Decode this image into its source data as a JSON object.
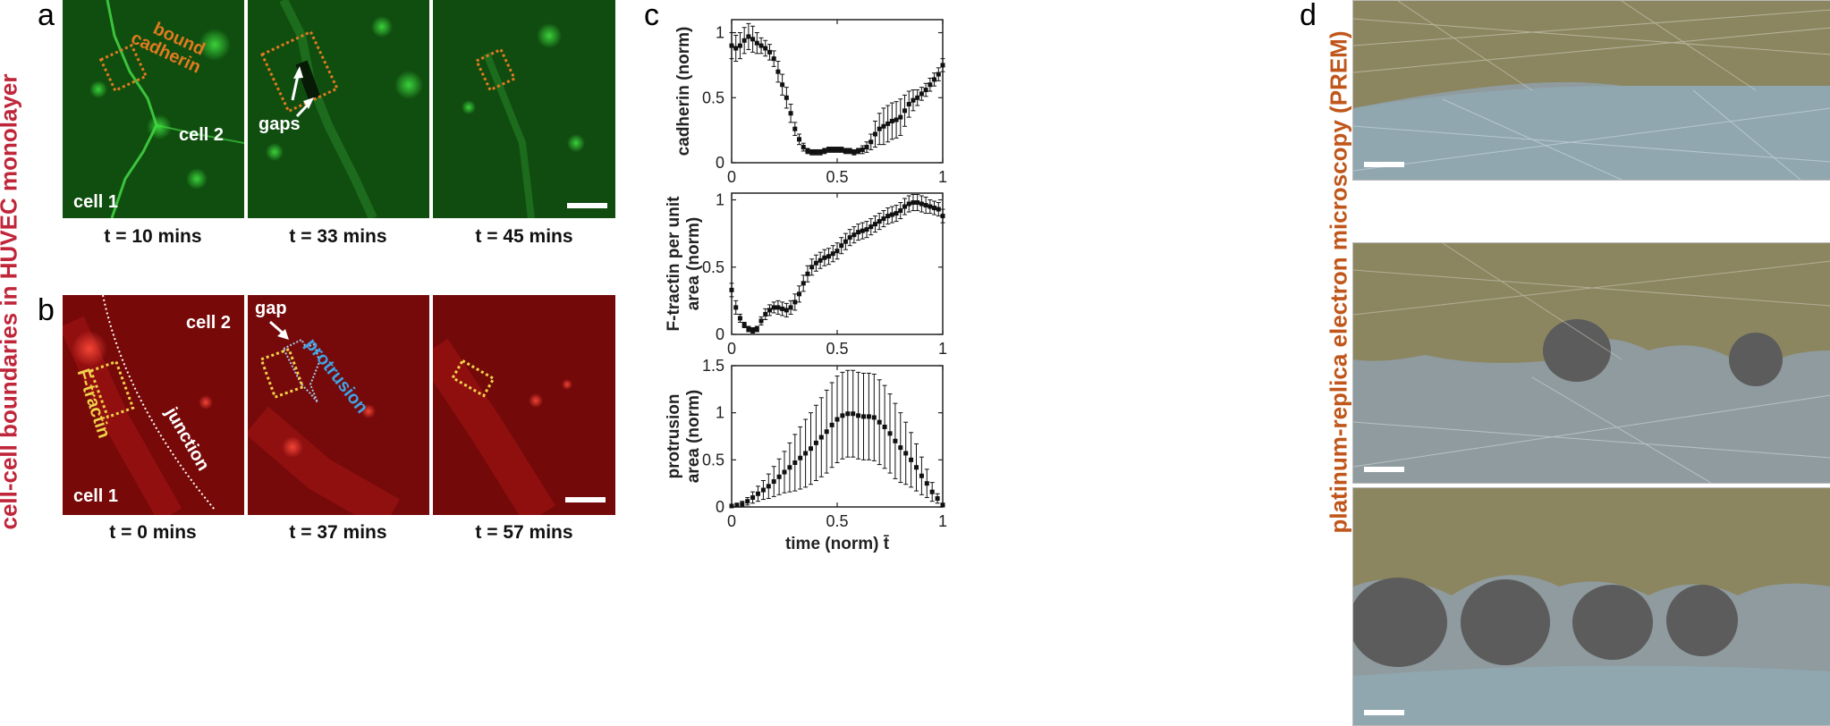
{
  "figure": {
    "side_label_left": "cell-cell boundaries in HUVEC monolayer",
    "side_label_right": "platinum-replica electron microscopy (PREM)",
    "colors": {
      "side_left": "#c0263a",
      "side_right": "#c0561a",
      "green": "#1b8a1b",
      "red": "#b01010",
      "orange_box": "#e07a1f",
      "yellow_box": "#f0d24a",
      "blue_text": "#3fa3e6"
    }
  },
  "panel_a": {
    "letter": "a",
    "times": [
      "t = 10 mins",
      "t = 33 mins",
      "t = 45 mins"
    ],
    "labels": {
      "bound_cadherin": [
        "bound",
        "cadherin"
      ],
      "cell2": "cell 2",
      "cell1": "cell 1",
      "gaps": "gaps"
    }
  },
  "panel_b": {
    "letter": "b",
    "times": [
      "t = 0 mins",
      "t = 37 mins",
      "t = 57 mins"
    ],
    "labels": {
      "cell2": "cell 2",
      "cell1": "cell 1",
      "ftractin": "F-tractin",
      "junction": "junction",
      "gap": "gap",
      "protrusion": "protrusion"
    }
  },
  "panel_c": {
    "letter": "c"
  },
  "panel_d": {
    "letter": "d"
  },
  "chart_data": [
    {
      "type": "scatter",
      "ylabel": [
        "cadherin (norm)"
      ],
      "xlabel": "",
      "xlim": [
        0,
        1
      ],
      "ylim": [
        0,
        1.1
      ],
      "xticks": [
        "0",
        "0.5",
        "1"
      ],
      "yticks": [
        "0",
        "0.5",
        "1"
      ],
      "x": [
        0,
        0.02,
        0.04,
        0.06,
        0.08,
        0.1,
        0.12,
        0.14,
        0.16,
        0.18,
        0.2,
        0.22,
        0.24,
        0.26,
        0.28,
        0.3,
        0.32,
        0.34,
        0.36,
        0.38,
        0.4,
        0.42,
        0.44,
        0.46,
        0.48,
        0.5,
        0.52,
        0.54,
        0.56,
        0.58,
        0.6,
        0.62,
        0.64,
        0.66,
        0.68,
        0.7,
        0.72,
        0.74,
        0.76,
        0.78,
        0.8,
        0.82,
        0.84,
        0.86,
        0.88,
        0.9,
        0.92,
        0.94,
        0.96,
        0.98,
        1.0
      ],
      "y": [
        0.9,
        0.88,
        0.9,
        0.94,
        0.97,
        0.95,
        0.92,
        0.9,
        0.88,
        0.85,
        0.8,
        0.7,
        0.6,
        0.5,
        0.38,
        0.26,
        0.18,
        0.12,
        0.09,
        0.08,
        0.08,
        0.08,
        0.09,
        0.1,
        0.1,
        0.1,
        0.1,
        0.09,
        0.09,
        0.08,
        0.09,
        0.1,
        0.12,
        0.16,
        0.22,
        0.26,
        0.28,
        0.3,
        0.32,
        0.33,
        0.35,
        0.4,
        0.45,
        0.48,
        0.5,
        0.53,
        0.56,
        0.6,
        0.64,
        0.68,
        0.75
      ],
      "err": [
        0.1,
        0.1,
        0.1,
        0.1,
        0.1,
        0.1,
        0.08,
        0.06,
        0.06,
        0.06,
        0.06,
        0.08,
        0.08,
        0.08,
        0.07,
        0.05,
        0.04,
        0.03,
        0.02,
        0.02,
        0.02,
        0.02,
        0.02,
        0.02,
        0.02,
        0.02,
        0.02,
        0.02,
        0.02,
        0.02,
        0.02,
        0.03,
        0.04,
        0.06,
        0.1,
        0.12,
        0.14,
        0.14,
        0.14,
        0.14,
        0.14,
        0.12,
        0.1,
        0.08,
        0.06,
        0.05,
        0.05,
        0.05,
        0.05,
        0.05,
        0.05
      ]
    },
    {
      "type": "scatter",
      "ylabel": [
        "F-tractin per unit",
        "area (norm)"
      ],
      "xlabel": "",
      "xlim": [
        0,
        1
      ],
      "ylim": [
        0,
        1.05
      ],
      "xticks": [
        "0",
        "0.5",
        "1"
      ],
      "yticks": [
        "0",
        "0.5",
        "1"
      ],
      "x": [
        0,
        0.02,
        0.04,
        0.06,
        0.08,
        0.1,
        0.12,
        0.14,
        0.16,
        0.18,
        0.2,
        0.22,
        0.24,
        0.26,
        0.28,
        0.3,
        0.32,
        0.34,
        0.36,
        0.38,
        0.4,
        0.42,
        0.44,
        0.46,
        0.48,
        0.5,
        0.52,
        0.54,
        0.56,
        0.58,
        0.6,
        0.62,
        0.64,
        0.66,
        0.68,
        0.7,
        0.72,
        0.74,
        0.76,
        0.78,
        0.8,
        0.82,
        0.84,
        0.86,
        0.88,
        0.9,
        0.92,
        0.94,
        0.96,
        0.98,
        1.0
      ],
      "y": [
        0.33,
        0.2,
        0.12,
        0.07,
        0.04,
        0.03,
        0.04,
        0.1,
        0.15,
        0.18,
        0.2,
        0.2,
        0.19,
        0.18,
        0.2,
        0.24,
        0.3,
        0.38,
        0.45,
        0.5,
        0.53,
        0.55,
        0.57,
        0.58,
        0.6,
        0.62,
        0.66,
        0.69,
        0.72,
        0.74,
        0.76,
        0.77,
        0.78,
        0.8,
        0.82,
        0.84,
        0.86,
        0.88,
        0.89,
        0.9,
        0.92,
        0.95,
        0.97,
        0.98,
        0.98,
        0.97,
        0.96,
        0.95,
        0.94,
        0.93,
        0.88
      ],
      "err": [
        0.05,
        0.05,
        0.03,
        0.02,
        0.02,
        0.02,
        0.02,
        0.03,
        0.04,
        0.04,
        0.04,
        0.05,
        0.05,
        0.05,
        0.05,
        0.06,
        0.06,
        0.06,
        0.06,
        0.06,
        0.06,
        0.06,
        0.06,
        0.06,
        0.06,
        0.06,
        0.06,
        0.06,
        0.06,
        0.06,
        0.06,
        0.06,
        0.06,
        0.06,
        0.06,
        0.06,
        0.06,
        0.06,
        0.06,
        0.06,
        0.06,
        0.06,
        0.06,
        0.06,
        0.06,
        0.06,
        0.06,
        0.05,
        0.05,
        0.05,
        0.05
      ]
    },
    {
      "type": "scatter",
      "ylabel": [
        "protrusion",
        "area (norm)"
      ],
      "xlabel": "time (norm) t̄",
      "xlim": [
        0,
        1
      ],
      "ylim": [
        0,
        1.5
      ],
      "xticks": [
        "0",
        "0.5",
        "1"
      ],
      "yticks": [
        "0",
        "0.5",
        "1",
        "1.5"
      ],
      "x": [
        0,
        0.025,
        0.05,
        0.075,
        0.1,
        0.125,
        0.15,
        0.175,
        0.2,
        0.225,
        0.25,
        0.275,
        0.3,
        0.325,
        0.35,
        0.375,
        0.4,
        0.425,
        0.45,
        0.475,
        0.5,
        0.525,
        0.55,
        0.575,
        0.6,
        0.625,
        0.65,
        0.675,
        0.7,
        0.725,
        0.75,
        0.775,
        0.8,
        0.825,
        0.85,
        0.875,
        0.9,
        0.925,
        0.95,
        0.975,
        1.0
      ],
      "y": [
        0.01,
        0.02,
        0.03,
        0.06,
        0.1,
        0.14,
        0.18,
        0.22,
        0.27,
        0.32,
        0.37,
        0.42,
        0.47,
        0.52,
        0.57,
        0.62,
        0.68,
        0.74,
        0.8,
        0.87,
        0.93,
        0.97,
        0.99,
        0.99,
        0.97,
        0.96,
        0.96,
        0.95,
        0.9,
        0.85,
        0.78,
        0.7,
        0.63,
        0.57,
        0.5,
        0.42,
        0.33,
        0.25,
        0.16,
        0.09,
        0.02
      ],
      "err": [
        0.01,
        0.02,
        0.03,
        0.04,
        0.06,
        0.08,
        0.1,
        0.13,
        0.16,
        0.19,
        0.22,
        0.26,
        0.3,
        0.33,
        0.36,
        0.38,
        0.4,
        0.42,
        0.44,
        0.45,
        0.46,
        0.46,
        0.46,
        0.46,
        0.46,
        0.46,
        0.46,
        0.46,
        0.45,
        0.44,
        0.42,
        0.4,
        0.37,
        0.33,
        0.29,
        0.25,
        0.2,
        0.15,
        0.1,
        0.05,
        0.02
      ]
    }
  ]
}
